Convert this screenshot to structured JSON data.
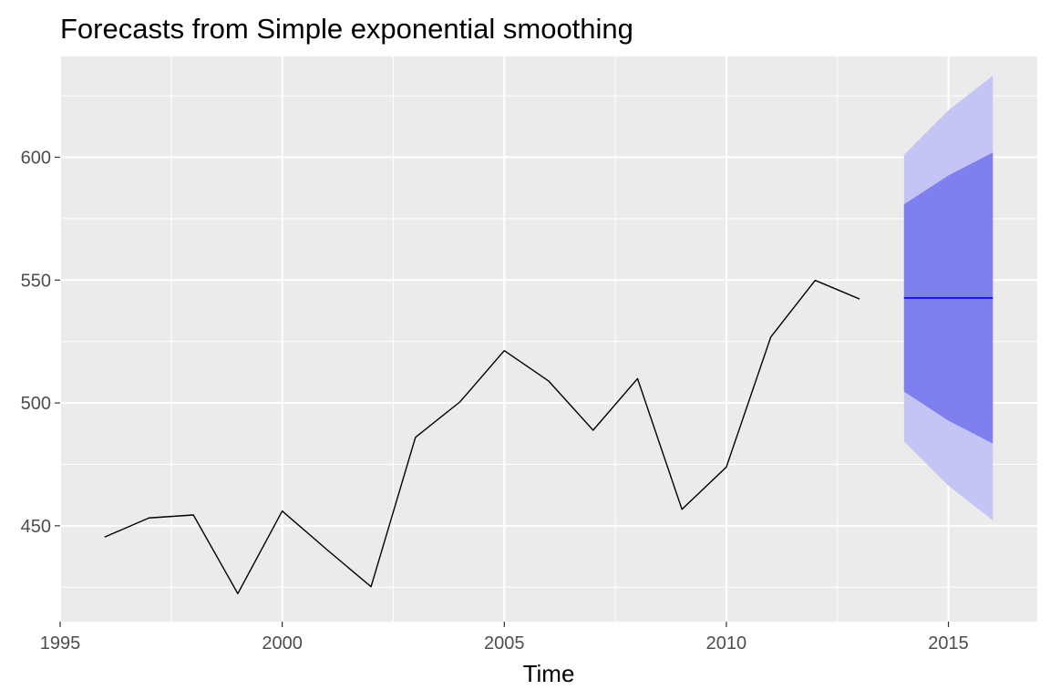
{
  "chart_data": {
    "type": "line",
    "title": "Forecasts from Simple exponential smoothing",
    "xlabel": "Time",
    "ylabel": "",
    "xlim": [
      1995,
      2017
    ],
    "ylim": [
      411,
      641
    ],
    "x_ticks": [
      1995,
      2000,
      2005,
      2010,
      2015
    ],
    "x_tick_labels": [
      "1995",
      "2000",
      "2005",
      "2010",
      "2015"
    ],
    "y_ticks": [
      450,
      500,
      550,
      600
    ],
    "y_tick_labels": [
      "450",
      "500",
      "550",
      "600"
    ],
    "grid": true,
    "legend": "none",
    "series": [
      {
        "x": [
          1996,
          1997,
          1998,
          1999,
          2000,
          2001,
          2002,
          2003,
          2004,
          2005,
          2006,
          2007,
          2008,
          2009,
          2010,
          2011,
          2012,
          2013
        ],
        "values": [
          445.4,
          453.2,
          454.4,
          422.4,
          456.0,
          440.4,
          425.2,
          486.0,
          500.4,
          521.3,
          508.9,
          488.9,
          509.9,
          456.7,
          473.9,
          526.8,
          549.9,
          542.3
        ],
        "color": "#000000"
      }
    ],
    "forecast": {
      "x": [
        2014,
        2015,
        2016
      ],
      "mean": [
        542.7,
        542.7,
        542.7
      ],
      "lower80": [
        504.6,
        492.8,
        483.5
      ],
      "upper80": [
        580.8,
        592.6,
        601.9
      ],
      "lower95": [
        484.4,
        466.3,
        452.2
      ],
      "upper95": [
        601.0,
        619.1,
        633.2
      ],
      "mean_color": "#0000ff",
      "band80_color": "#7f7ff0",
      "band95_color": "#c5c5f5"
    },
    "panel_color": "#ebebeb",
    "grid_color": "#ffffff"
  }
}
